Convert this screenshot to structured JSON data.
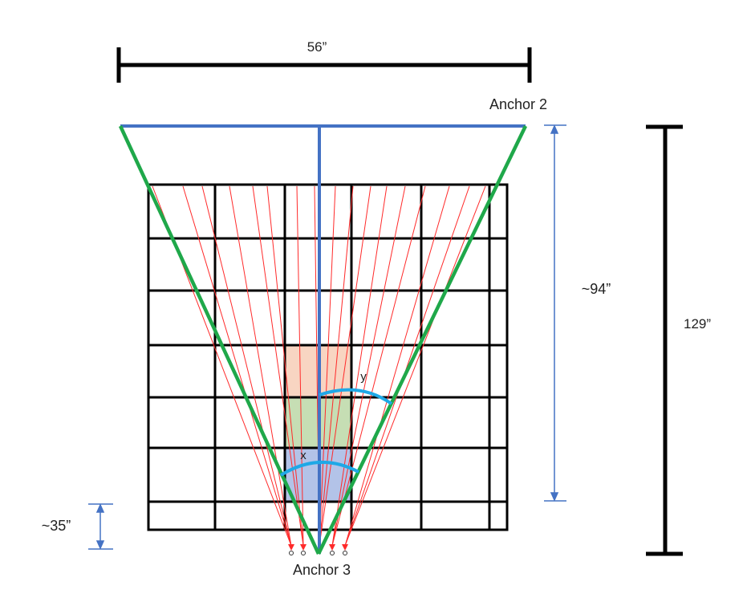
{
  "labels": {
    "top_dimension": "56”",
    "anchor_top": "Anchor 2",
    "anchor_bottom": "Anchor 3",
    "inner_height": "~94”",
    "total_height": "129”",
    "bottom_offset": "~35”",
    "angle_x": "x",
    "angle_y": "y"
  },
  "colors": {
    "frame_blue": "#4472c4",
    "cone_green": "#1fa84a",
    "ray_red": "#ff2a2a",
    "arc_cyan": "#1fa8e6",
    "grid_black": "#000000",
    "cell_orange": "#f8d5c2",
    "cell_green": "#c6deb4",
    "cell_blue": "#b3c3e8"
  }
}
